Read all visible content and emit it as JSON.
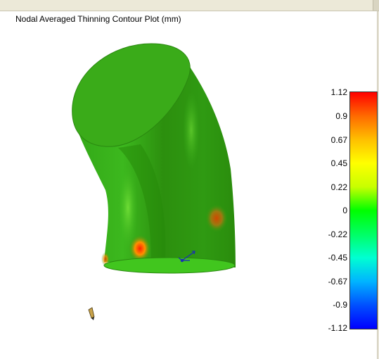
{
  "title": "Nodal Averaged Thinning Contour Plot (mm)",
  "legend": {
    "ticks": [
      "1.12",
      "0.9",
      "0.67",
      "0.45",
      "0.22",
      "0",
      "-0.22",
      "-0.45",
      "-0.67",
      "-0.9",
      "-1.12"
    ],
    "colors": [
      "#ff0000",
      "#ff6a00",
      "#ffbf00",
      "#ffff00",
      "#c8ff00",
      "#00ff00",
      "#00ff64",
      "#00ffd2",
      "#00b4ff",
      "#0050ff",
      "#0000ff"
    ]
  },
  "model": {
    "base_color": "#2e9e10",
    "hot_spot_color": "#ff3000"
  }
}
